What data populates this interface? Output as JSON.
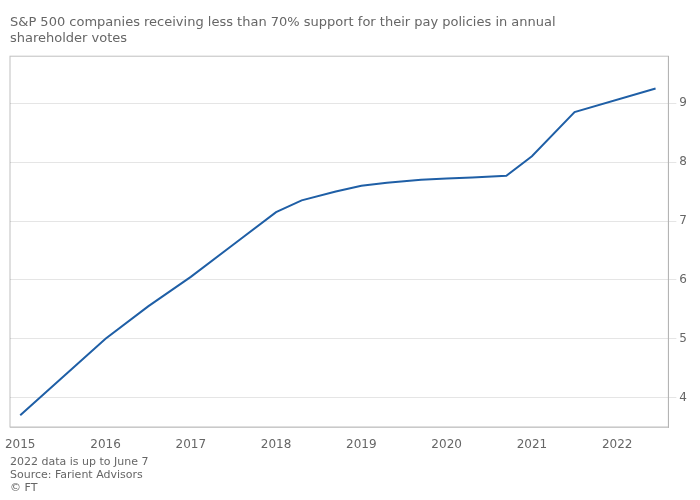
{
  "chart_data": {
    "type": "line",
    "title": "S&P 500 companies receiving less than 70% support for their pay policies in annual\nshareholder votes",
    "x": [
      2015,
      2015.5,
      2016,
      2016.5,
      2017,
      2017.5,
      2018,
      2018.3,
      2018.7,
      2019,
      2019.3,
      2019.7,
      2020,
      2020.3,
      2020.7,
      2021,
      2021.5,
      2022.45
    ],
    "values": [
      3.7,
      4.35,
      5.0,
      5.55,
      6.05,
      6.6,
      7.15,
      7.35,
      7.5,
      7.6,
      7.65,
      7.7,
      7.72,
      7.74,
      7.77,
      8.1,
      8.85,
      9.25
    ],
    "color": "#1f5fa6",
    "xlim": [
      2014.88,
      2022.6
    ],
    "xticks": [
      2015,
      2016,
      2017,
      2018,
      2019,
      2020,
      2021,
      2022
    ],
    "ylim": [
      3.5,
      9.8
    ],
    "yticks": [
      4,
      5,
      6,
      7,
      8,
      9
    ],
    "grid": true,
    "annotations": [
      "2022 data is up to June 7",
      "Source: Farient Advisors",
      "© FT"
    ]
  }
}
